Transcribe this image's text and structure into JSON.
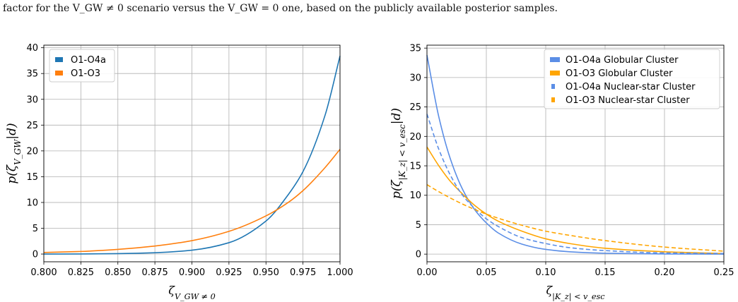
{
  "caption": "factor for the V_GW ≠ 0 scenario versus the V_GW = 0 one, based on the publicly available posterior samples.",
  "chart_data": [
    {
      "type": "line",
      "xlabel": "ζ_{V_GW ≠ 0}",
      "ylabel": "p(ζ_{V_GW}|d)",
      "xlim": [
        0.8,
        1.0
      ],
      "ylim": [
        -1.5,
        40.5
      ],
      "xticks": [
        "0.800",
        "0.825",
        "0.850",
        "0.875",
        "0.900",
        "0.925",
        "0.950",
        "0.975",
        "1.000"
      ],
      "yticks": [
        "0",
        "5",
        "10",
        "15",
        "20",
        "25",
        "30",
        "35",
        "40"
      ],
      "grid": true,
      "legend": "top-left",
      "series": [
        {
          "name": "O1-O4a",
          "color": "#1f77b4",
          "style": "solid",
          "x": [
            0.8,
            0.825,
            0.85,
            0.875,
            0.9,
            0.925,
            0.95,
            0.965,
            0.975,
            0.99,
            1.0
          ],
          "y": [
            0.0,
            0.02,
            0.08,
            0.25,
            0.75,
            2.2,
            6.4,
            11.5,
            16.0,
            27.0,
            38.4
          ]
        },
        {
          "name": "O1-O3",
          "color": "#ff7f0e",
          "style": "solid",
          "x": [
            0.8,
            0.825,
            0.85,
            0.875,
            0.9,
            0.925,
            0.95,
            0.965,
            0.975,
            0.99,
            1.0
          ],
          "y": [
            0.3,
            0.5,
            0.9,
            1.55,
            2.6,
            4.4,
            7.4,
            10.0,
            12.3,
            16.8,
            20.3
          ]
        }
      ]
    },
    {
      "type": "line",
      "xlabel": "ζ_{|K_z| < v_esc}",
      "ylabel": "p(ζ_{|K_z| < v_esc}|d)",
      "xlim": [
        0.0,
        0.25
      ],
      "ylim": [
        -1.3,
        35.5
      ],
      "xticks": [
        "0.00",
        "0.05",
        "0.10",
        "0.15",
        "0.20",
        "0.25"
      ],
      "yticks": [
        "0",
        "5",
        "10",
        "15",
        "20",
        "25",
        "30",
        "35"
      ],
      "grid": true,
      "legend": "top-right",
      "series": [
        {
          "name": "O1-O4a Globular Cluster",
          "color": "#5b8ee6",
          "style": "solid",
          "x": [
            0.0,
            0.01,
            0.02,
            0.03,
            0.04,
            0.05,
            0.06,
            0.08,
            0.1,
            0.12,
            0.15,
            0.2,
            0.25
          ],
          "y": [
            33.8,
            23.3,
            16.0,
            11.0,
            7.6,
            5.3,
            3.6,
            1.7,
            0.8,
            0.4,
            0.15,
            0.03,
            0.0
          ]
        },
        {
          "name": "O1-O3 Globular Cluster",
          "color": "#ffa500",
          "style": "solid",
          "x": [
            0.0,
            0.01,
            0.02,
            0.03,
            0.04,
            0.05,
            0.06,
            0.08,
            0.1,
            0.12,
            0.15,
            0.2,
            0.25
          ],
          "y": [
            18.2,
            15.0,
            12.3,
            10.2,
            8.3,
            6.8,
            5.6,
            3.9,
            2.6,
            1.8,
            1.0,
            0.4,
            0.1
          ]
        },
        {
          "name": "O1-O4a Nuclear-star Cluster",
          "color": "#5b8ee6",
          "style": "dashed",
          "x": [
            0.0,
            0.01,
            0.02,
            0.03,
            0.04,
            0.05,
            0.06,
            0.08,
            0.1,
            0.12,
            0.15,
            0.2,
            0.25
          ],
          "y": [
            23.8,
            17.8,
            13.3,
            10.0,
            7.8,
            6.0,
            4.7,
            2.8,
            1.8,
            1.1,
            0.6,
            0.2,
            0.1
          ]
        },
        {
          "name": "O1-O3 Nuclear-star Cluster",
          "color": "#ffa500",
          "style": "dashed",
          "x": [
            0.0,
            0.01,
            0.02,
            0.03,
            0.04,
            0.05,
            0.06,
            0.08,
            0.1,
            0.12,
            0.15,
            0.2,
            0.25
          ],
          "y": [
            11.8,
            10.6,
            9.5,
            8.5,
            7.6,
            6.8,
            6.1,
            4.9,
            3.9,
            3.2,
            2.3,
            1.2,
            0.5
          ]
        }
      ]
    }
  ]
}
